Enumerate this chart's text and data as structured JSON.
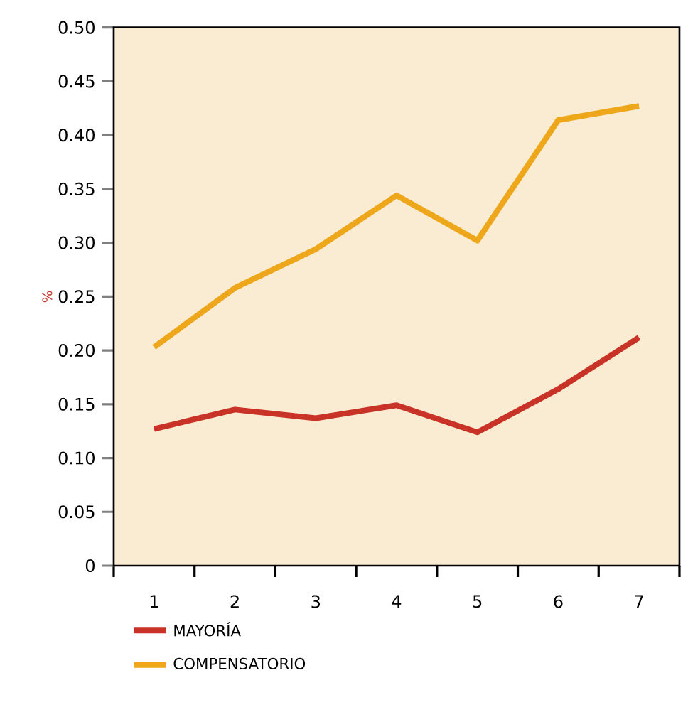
{
  "chart_data": {
    "type": "line",
    "ylabel": "%",
    "categories": [
      "1",
      "2",
      "3",
      "4",
      "5",
      "6",
      "7"
    ],
    "series": [
      {
        "name": "MAYORÍA",
        "color": "#c93226",
        "values": [
          0.127,
          0.145,
          0.137,
          0.149,
          0.124,
          0.164,
          0.212
        ]
      },
      {
        "name": "COMPENSATORIO",
        "color": "#eea61a",
        "values": [
          0.203,
          0.258,
          0.294,
          0.344,
          0.302,
          0.414,
          0.427
        ]
      }
    ],
    "ylim": [
      0,
      0.5
    ],
    "yticks": [
      0,
      {
        "value": 0.05,
        "label": "0.05"
      },
      {
        "value": 0.1,
        "label": "0.10"
      },
      {
        "value": 0.15,
        "label": "0.15"
      },
      {
        "value": 0.2,
        "label": "0.20"
      },
      {
        "value": 0.25,
        "label": "0.25"
      },
      {
        "value": 0.3,
        "label": "0.30"
      },
      {
        "value": 0.35,
        "label": "0.35"
      },
      {
        "value": 0.4,
        "label": "0.40"
      },
      {
        "value": 0.45,
        "label": "0.45"
      },
      {
        "value": 0.5,
        "label": "0.50"
      }
    ],
    "legend": "bottom",
    "grid": false,
    "marker": "none",
    "line_style": "solid"
  }
}
